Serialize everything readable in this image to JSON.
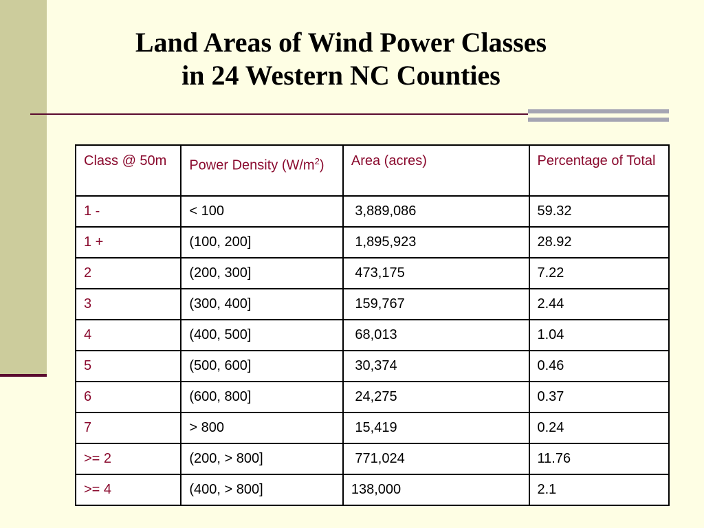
{
  "title": {
    "line1": "Land Areas of Wind Power Classes",
    "line2": "in 24 Western NC Counties"
  },
  "table": {
    "headers": {
      "class": "Class @ 50m",
      "density_main": "Power Density (W/m",
      "density_sup": "2",
      "density_end": ")",
      "area": "Area (acres)",
      "percent": "Percentage of Total"
    },
    "rows": [
      {
        "class": "1 -",
        "density": "< 100",
        "area": " 3,889,086",
        "percent": "59.32"
      },
      {
        "class": "1 +",
        "density": "(100, 200]",
        "area": " 1,895,923",
        "percent": "28.92"
      },
      {
        "class": "2",
        "density": "(200, 300]",
        "area": " 473,175",
        "percent": "7.22"
      },
      {
        "class": "3",
        "density": "(300, 400]",
        "area": " 159,767",
        "percent": "2.44"
      },
      {
        "class": "4",
        "density": "(400, 500]",
        "area": " 68,013",
        "percent": "1.04"
      },
      {
        "class": "5",
        "density": "(500, 600]",
        "area": " 30,374",
        "percent": "0.46"
      },
      {
        "class": "6",
        "density": "(600, 800]",
        "area": " 24,275",
        "percent": "0.37"
      },
      {
        "class": "7",
        "density": "> 800",
        "area": " 15,419",
        "percent": "0.24"
      },
      {
        "class": ">= 2",
        "density": "(200, > 800]",
        "area": " 771,024",
        "percent": "11.76"
      },
      {
        "class": ">= 4",
        "density": "(400, > 800]",
        "area": "138,000",
        "percent": "2.1"
      }
    ]
  },
  "colors": {
    "background": "#fefee4",
    "sidebar": "#cccc9c",
    "accent_rule": "#5a0a2e",
    "class_text": "#8a0a2e",
    "gray_bar": "#a5a5b3"
  }
}
